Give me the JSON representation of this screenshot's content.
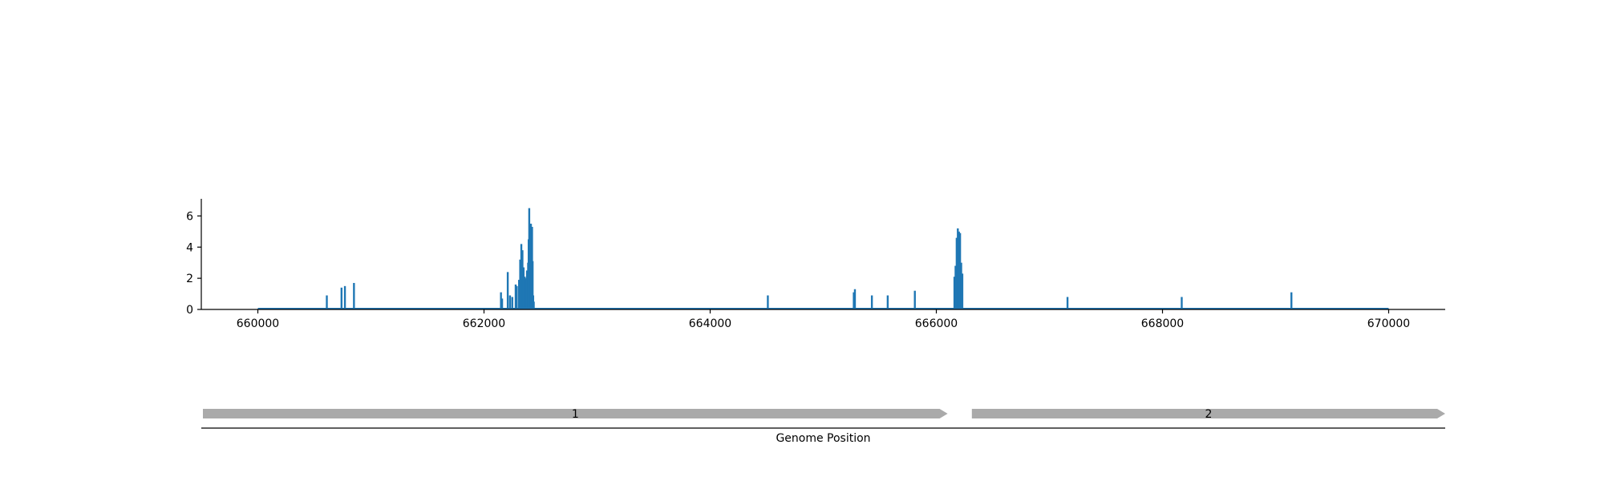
{
  "chart_data": {
    "type": "bar",
    "xlabel": "Genome Position",
    "ylabel": "",
    "title": "",
    "xlim": [
      659500,
      670500
    ],
    "ylim": [
      0,
      7.1
    ],
    "xticks": [
      660000,
      662000,
      664000,
      666000,
      668000,
      670000
    ],
    "xtick_labels": [
      "660000",
      "662000",
      "664000",
      "666000",
      "668000",
      "670000"
    ],
    "yticks": [
      0,
      2,
      4,
      6
    ],
    "ytick_labels": [
      "0",
      "2",
      "4",
      "6"
    ],
    "baseline": [
      660000,
      670000
    ],
    "color": "#1f77b4",
    "x": [
      660610,
      660740,
      660770,
      660850,
      662150,
      662160,
      662210,
      662230,
      662250,
      662280,
      662290,
      662310,
      662320,
      662330,
      662340,
      662350,
      662360,
      662370,
      662380,
      662390,
      662395,
      662400,
      662405,
      662410,
      662415,
      662420,
      662425,
      662430,
      662435,
      662440,
      664510,
      665270,
      665280,
      665430,
      665570,
      665810,
      666160,
      666170,
      666180,
      666190,
      666200,
      666210,
      666220,
      666230,
      667160,
      668170,
      669140
    ],
    "values": [
      0.9,
      1.4,
      1.5,
      1.7,
      1.1,
      0.7,
      2.4,
      0.9,
      0.8,
      1.6,
      1.5,
      1.9,
      3.2,
      4.2,
      3.8,
      2.7,
      2.1,
      2.0,
      2.5,
      3.0,
      4.5,
      6.5,
      5.0,
      5.5,
      5.5,
      2.7,
      5.3,
      3.1,
      0.9,
      0.5,
      0.9,
      1.1,
      1.3,
      0.9,
      0.9,
      1.2,
      2.1,
      2.8,
      4.6,
      5.2,
      5.0,
      4.9,
      3.0,
      2.3,
      0.8,
      0.8,
      1.1
    ],
    "genes": [
      {
        "label": "1",
        "start": 659500,
        "end": 666100,
        "strand": "+",
        "color": "#aaaaaa"
      },
      {
        "label": "2",
        "start": 666300,
        "end": 670500,
        "strand": "+",
        "color": "#aaaaaa"
      }
    ]
  }
}
